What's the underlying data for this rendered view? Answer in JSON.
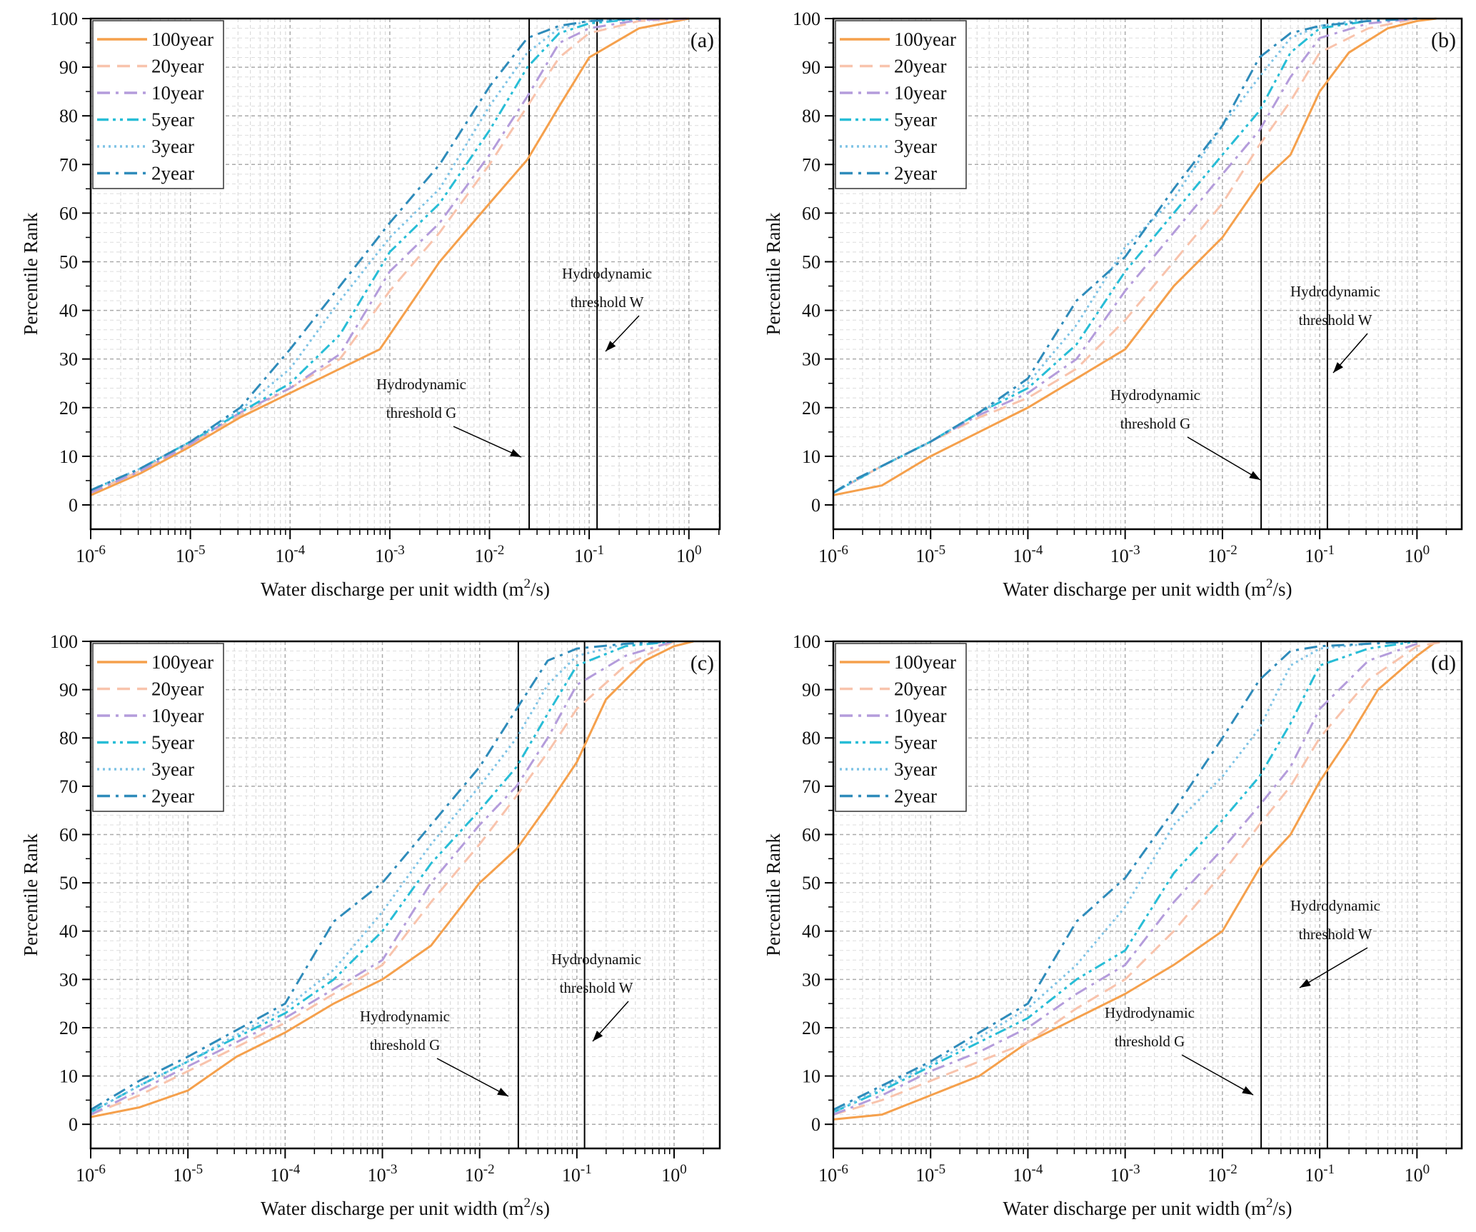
{
  "chart_data": [
    {
      "panel_label": "(a)",
      "type": "line",
      "xscale": "log",
      "x_is_log10": true,
      "xlim_log10": [
        -6,
        0.31
      ],
      "ylim": [
        -5,
        100
      ],
      "xlabel": "Water discharge per unit width (m2/s)",
      "ylabel": "Percentile Rank",
      "xticks": [
        "10-6",
        "10-5",
        "10-4",
        "10-3",
        "10-2",
        "10-1",
        "100"
      ],
      "yticks": [
        0,
        10,
        20,
        30,
        40,
        50,
        60,
        70,
        80,
        90,
        100
      ],
      "legend_position": "top-left",
      "thresholds": [
        {
          "name": "Hydrodynamic threshold G",
          "x": 0.025
        },
        {
          "name": "Hydrodynamic threshold W",
          "x": 0.12
        }
      ],
      "annotations": [
        {
          "line1": "Hydrodynamic",
          "line2": "threshold G"
        },
        {
          "line1": "Hydrodynamic",
          "line2": "threshold W"
        }
      ],
      "series": [
        {
          "name": "100year",
          "color": "#F5A04C",
          "dash": "solid",
          "x": [
            -6,
            -5.5,
            -5,
            -4.5,
            -4,
            -3.5,
            -3.1,
            -3,
            -2.5,
            -2,
            -1.62,
            -1.3,
            -1,
            -0.5,
            0
          ],
          "y": [
            2,
            6.5,
            12,
            18,
            23,
            28,
            32,
            35,
            50,
            62,
            71,
            82,
            92,
            98,
            100
          ]
        },
        {
          "name": "20year",
          "color": "#F8C3AC",
          "dash": "dash",
          "x": [
            -6,
            -5.5,
            -5,
            -4.5,
            -4,
            -3.5,
            -3,
            -2.5,
            -2,
            -1.62,
            -1.3,
            -1,
            -0.5,
            0
          ],
          "y": [
            2.5,
            7,
            12.5,
            18.5,
            24,
            30,
            44,
            56,
            70,
            82,
            92,
            97,
            99.5,
            100
          ]
        },
        {
          "name": "10year",
          "color": "#B49CDB",
          "dash": "dashdot",
          "x": [
            -6,
            -5.5,
            -5,
            -4.5,
            -4,
            -3.5,
            -3,
            -2.5,
            -2,
            -1.62,
            -1.3,
            -1,
            -0.5,
            0
          ],
          "y": [
            2.5,
            7,
            12.5,
            19,
            24,
            31,
            48,
            58,
            72,
            84,
            95,
            98,
            99.7,
            100
          ]
        },
        {
          "name": "5year",
          "color": "#27BDD6",
          "dash": "dashdotdot",
          "x": [
            -6,
            -5.5,
            -5,
            -4.5,
            -4,
            -3.5,
            -3,
            -2.5,
            -2,
            -1.62,
            -1.3,
            -1,
            -0.5
          ],
          "y": [
            3,
            7.5,
            13,
            19,
            25,
            35,
            52,
            62,
            77,
            90,
            97,
            99,
            100
          ]
        },
        {
          "name": "3year",
          "color": "#7EC3E5",
          "dash": "dot",
          "x": [
            -6,
            -5.5,
            -5,
            -4.5,
            -4,
            -3.5,
            -3,
            -2.5,
            -2,
            -1.62,
            -1.3,
            -1,
            -0.5
          ],
          "y": [
            3,
            7.5,
            13,
            19.5,
            28,
            42,
            55,
            65,
            82,
            93,
            98,
            99.5,
            100
          ]
        },
        {
          "name": "2year",
          "color": "#2E8BBA",
          "dash": "dashdot",
          "x": [
            -6,
            -5.5,
            -5,
            -4.5,
            -4,
            -3.5,
            -3,
            -2.5,
            -2,
            -1.62,
            -1.3,
            -1,
            -0.5
          ],
          "y": [
            3,
            7.5,
            13,
            20,
            32,
            45,
            58,
            70,
            86,
            96,
            98.5,
            99.5,
            100
          ]
        }
      ]
    },
    {
      "panel_label": "(b)",
      "type": "line",
      "xscale": "log",
      "x_is_log10": true,
      "xlim_log10": [
        -6,
        0.46
      ],
      "ylim": [
        -5,
        100
      ],
      "xlabel": "Water discharge per unit width (m2/s)",
      "ylabel": "Percentile Rank",
      "xticks": [
        "10-6",
        "10-5",
        "10-4",
        "10-3",
        "10-2",
        "10-1",
        "100"
      ],
      "yticks": [
        0,
        10,
        20,
        30,
        40,
        50,
        60,
        70,
        80,
        90,
        100
      ],
      "legend_position": "top-left",
      "thresholds": [
        {
          "name": "Hydrodynamic threshold G",
          "x": 0.025
        },
        {
          "name": "Hydrodynamic threshold W",
          "x": 0.12
        }
      ],
      "annotations": [
        {
          "line1": "Hydrodynamic",
          "line2": "threshold G"
        },
        {
          "line1": "Hydrodynamic",
          "line2": "threshold W"
        }
      ],
      "series": [
        {
          "name": "100year",
          "color": "#F5A04C",
          "dash": "solid",
          "x": [
            -6,
            -5.5,
            -5,
            -4.5,
            -4,
            -3.5,
            -3,
            -2.5,
            -2,
            -1.62,
            -1.3,
            -1,
            -0.7,
            -0.3,
            0,
            0.2
          ],
          "y": [
            2,
            4,
            10,
            15,
            20,
            26,
            32,
            45,
            55,
            66,
            72,
            85,
            93,
            98,
            99.5,
            100
          ]
        },
        {
          "name": "20year",
          "color": "#F8C3AC",
          "dash": "dash",
          "x": [
            -6,
            -5.5,
            -5,
            -4.5,
            -4,
            -3.5,
            -3,
            -2.5,
            -2,
            -1.62,
            -1.3,
            -1,
            -0.5,
            0
          ],
          "y": [
            2.5,
            8,
            13,
            18,
            22,
            28,
            38,
            50,
            62,
            74,
            83,
            93,
            98,
            100
          ]
        },
        {
          "name": "10year",
          "color": "#B49CDB",
          "dash": "dashdot",
          "x": [
            -6,
            -5.5,
            -5,
            -4.5,
            -4,
            -3.5,
            -3,
            -2.5,
            -2,
            -1.62,
            -1.3,
            -1,
            -0.5,
            0
          ],
          "y": [
            2.5,
            8,
            13,
            18.5,
            23,
            30,
            44,
            56,
            68,
            77,
            88,
            96,
            99,
            100
          ]
        },
        {
          "name": "5year",
          "color": "#27BDD6",
          "dash": "dashdotdot",
          "x": [
            -6,
            -5.5,
            -5,
            -4.5,
            -4,
            -3.5,
            -3,
            -2.5,
            -2,
            -1.62,
            -1.3,
            -1,
            -0.5
          ],
          "y": [
            2.5,
            8,
            13,
            19,
            24,
            33,
            48,
            60,
            72,
            81,
            93,
            98,
            99.5
          ]
        },
        {
          "name": "3year",
          "color": "#7EC3E5",
          "dash": "dot",
          "x": [
            -6,
            -5.5,
            -5,
            -4.5,
            -4,
            -3.5,
            -3,
            -2.5,
            -2,
            -1.62,
            -1.3,
            -1,
            -0.5
          ],
          "y": [
            2.5,
            8,
            13,
            19,
            25,
            37,
            53,
            63,
            78,
            88,
            96,
            98.5,
            100
          ]
        },
        {
          "name": "2year",
          "color": "#2E8BBA",
          "dash": "dashdot",
          "x": [
            -6,
            -5.8,
            -5.5,
            -5,
            -4.5,
            -4,
            -3.5,
            -3,
            -2.5,
            -2,
            -1.62,
            -1.3,
            -1,
            -0.5,
            0
          ],
          "y": [
            2.5,
            5,
            8,
            13,
            19,
            26,
            42,
            51,
            65,
            78,
            92,
            97,
            98.5,
            99.5,
            100
          ]
        }
      ]
    },
    {
      "panel_label": "(c)",
      "type": "line",
      "xscale": "log",
      "x_is_log10": true,
      "xlim_log10": [
        -6,
        0.47
      ],
      "ylim": [
        -5,
        100
      ],
      "xlabel": "Water discharge per unit width (m2/s)",
      "ylabel": "Percentile Rank",
      "xticks": [
        "10-6",
        "10-5",
        "10-4",
        "10-3",
        "10-2",
        "10-1",
        "100"
      ],
      "yticks": [
        0,
        10,
        20,
        30,
        40,
        50,
        60,
        70,
        80,
        90,
        100
      ],
      "legend_position": "top-left",
      "thresholds": [
        {
          "name": "Hydrodynamic threshold G",
          "x": 0.025
        },
        {
          "name": "Hydrodynamic threshold W",
          "x": 0.12
        }
      ],
      "annotations": [
        {
          "line1": "Hydrodynamic",
          "line2": "threshold G"
        },
        {
          "line1": "Hydrodynamic",
          "line2": "threshold W"
        }
      ],
      "series": [
        {
          "name": "100year",
          "color": "#F5A04C",
          "dash": "solid",
          "x": [
            -6,
            -5.5,
            -5,
            -4.5,
            -4,
            -3.5,
            -3,
            -2.5,
            -2,
            -1.62,
            -1.3,
            -1,
            -0.7,
            -0.3,
            0,
            0.2
          ],
          "y": [
            1.5,
            3.5,
            7,
            14,
            19,
            25,
            30,
            37,
            50,
            57,
            66,
            75,
            88,
            96,
            99,
            100
          ]
        },
        {
          "name": "20year",
          "color": "#F8C3AC",
          "dash": "dash",
          "x": [
            -6,
            -5.5,
            -5,
            -4.5,
            -4,
            -3.5,
            -3,
            -2.5,
            -2,
            -1.62,
            -1.3,
            -1,
            -0.5,
            0
          ],
          "y": [
            2,
            6,
            11,
            16,
            21,
            27,
            33,
            46,
            58,
            68,
            77,
            86,
            95,
            100
          ]
        },
        {
          "name": "10year",
          "color": "#B49CDB",
          "dash": "dashdot",
          "x": [
            -6,
            -5.5,
            -5,
            -4.5,
            -4,
            -3.5,
            -3,
            -2.5,
            -2,
            -1.62,
            -1.3,
            -1,
            -0.5,
            0
          ],
          "y": [
            2,
            7,
            12,
            17,
            22,
            28,
            34,
            50,
            62,
            70,
            80,
            91,
            97,
            100
          ]
        },
        {
          "name": "5year",
          "color": "#27BDD6",
          "dash": "dashdotdot",
          "x": [
            -6,
            -5.5,
            -5,
            -4.5,
            -4,
            -3.5,
            -3,
            -2.5,
            -2,
            -1.62,
            -1.3,
            -1,
            -0.5,
            0
          ],
          "y": [
            2.5,
            8,
            13,
            18,
            23,
            30,
            40,
            54,
            65,
            74,
            85,
            95,
            99,
            100
          ]
        },
        {
          "name": "3year",
          "color": "#7EC3E5",
          "dash": "dot",
          "x": [
            -6,
            -5.5,
            -5,
            -4.5,
            -4,
            -3.5,
            -3,
            -2.5,
            -2,
            -1.62,
            -1.3,
            -1,
            -0.5
          ],
          "y": [
            2.5,
            8,
            13,
            18.5,
            24,
            32,
            44,
            58,
            70,
            80,
            91,
            97,
            99.5
          ]
        },
        {
          "name": "2year",
          "color": "#2E8BBA",
          "dash": "dashdot",
          "x": [
            -6,
            -5.5,
            -5,
            -4.5,
            -4,
            -3.5,
            -3,
            -2.5,
            -2,
            -1.62,
            -1.3,
            -1,
            -0.5,
            0
          ],
          "y": [
            3,
            9,
            14,
            19.5,
            25,
            42,
            50,
            62,
            74,
            86,
            96,
            98.5,
            99.5,
            100
          ]
        }
      ]
    },
    {
      "panel_label": "(d)",
      "type": "line",
      "xscale": "log",
      "x_is_log10": true,
      "xlim_log10": [
        -6,
        0.46
      ],
      "ylim": [
        -5,
        100
      ],
      "xlabel": "Water discharge per unit width (m2/s)",
      "ylabel": "Percentile Rank",
      "xticks": [
        "10-6",
        "10-5",
        "10-4",
        "10-3",
        "10-2",
        "10-1",
        "100"
      ],
      "yticks": [
        0,
        10,
        20,
        30,
        40,
        50,
        60,
        70,
        80,
        90,
        100
      ],
      "legend_position": "top-left",
      "thresholds": [
        {
          "name": "Hydrodynamic threshold G",
          "x": 0.025
        },
        {
          "name": "Hydrodynamic threshold W",
          "x": 0.12
        }
      ],
      "annotations": [
        {
          "line1": "Hydrodynamic",
          "line2": "threshold G"
        },
        {
          "line1": "Hydrodynamic",
          "line2": "threshold W"
        }
      ],
      "series": [
        {
          "name": "100year",
          "color": "#F5A04C",
          "dash": "solid",
          "x": [
            -6,
            -5.5,
            -5,
            -4.5,
            -4,
            -3.5,
            -3,
            -2.5,
            -2,
            -1.62,
            -1.3,
            -1,
            -0.7,
            -0.4,
            0,
            0.2
          ],
          "y": [
            1,
            2,
            6,
            10,
            17,
            22,
            27,
            33,
            40,
            53,
            60,
            71,
            80,
            90,
            97,
            100
          ]
        },
        {
          "name": "20year",
          "color": "#F8C3AC",
          "dash": "dash",
          "x": [
            -6,
            -5.5,
            -5,
            -4.5,
            -4,
            -3.5,
            -3,
            -2.5,
            -2,
            -1.62,
            -1.3,
            -1,
            -0.5,
            0,
            0.3
          ],
          "y": [
            2,
            5,
            9,
            13,
            17,
            24,
            30,
            40,
            52,
            62,
            70,
            80,
            92,
            99,
            100
          ]
        },
        {
          "name": "10year",
          "color": "#B49CDB",
          "dash": "dashdot",
          "x": [
            -6,
            -5.5,
            -5,
            -4.5,
            -4,
            -3.5,
            -3,
            -2.5,
            -2,
            -1.62,
            -1.3,
            -1,
            -0.5,
            0
          ],
          "y": [
            2,
            6,
            11,
            15,
            20,
            27,
            33,
            46,
            57,
            66,
            74,
            86,
            96,
            99.5
          ]
        },
        {
          "name": "5year",
          "color": "#27BDD6",
          "dash": "dashdotdot",
          "x": [
            -6,
            -5.5,
            -5,
            -4.5,
            -4,
            -3.5,
            -3,
            -2.5,
            -2,
            -1.62,
            -1.3,
            -1,
            -0.5,
            0
          ],
          "y": [
            2.5,
            7,
            12,
            17,
            22,
            30,
            36,
            52,
            63,
            72,
            83,
            95,
            98.5,
            100
          ]
        },
        {
          "name": "3year",
          "color": "#7EC3E5",
          "dash": "dot",
          "x": [
            -6,
            -5.5,
            -5,
            -4.5,
            -4,
            -3.5,
            -3,
            -2.5,
            -2,
            -1.62,
            -1.3,
            -1,
            -0.5
          ],
          "y": [
            2.5,
            7.5,
            12.5,
            18,
            24,
            33,
            45,
            62,
            72,
            82,
            95,
            98.5,
            99.5
          ]
        },
        {
          "name": "2year",
          "color": "#2E8BBA",
          "dash": "dashdot",
          "x": [
            -6,
            -5.5,
            -5,
            -4.5,
            -4,
            -3.5,
            -3,
            -2.5,
            -2,
            -1.62,
            -1.3,
            -1,
            -0.5,
            0
          ],
          "y": [
            3,
            8,
            13,
            19,
            25,
            42,
            51,
            65,
            80,
            92,
            98,
            99,
            99.5,
            100
          ]
        }
      ]
    }
  ]
}
